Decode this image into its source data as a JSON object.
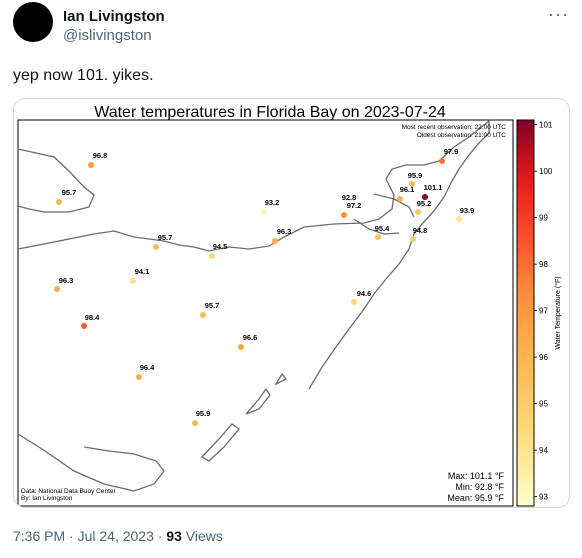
{
  "author": {
    "name": "Ian Livingston",
    "handle": "@islivingston"
  },
  "tweet": {
    "text": "yep now 101. yikes."
  },
  "more_icon": "more-horizontal-icon",
  "chart_data": {
    "type": "scatter",
    "title": "Water temperatures in Florida Bay on 2023-07-24",
    "recent_obs": "Most recent observation: 22:00 UTC",
    "oldest_obs": "Oldest observation: 21:00 UTC",
    "source_line1": "Data: National Data Buoy Center",
    "source_line2": "By: Ian Livingston",
    "stats": {
      "max": "Max: 101.1 °F",
      "min": "Min: 92.8 °F",
      "mean": "Mean: 95.9 °F"
    },
    "colorbar": {
      "label": "Water Temperature (°F)",
      "ticks": [
        "101",
        "100",
        "99",
        "98",
        "97",
        "96",
        "95",
        "94",
        "93"
      ],
      "range": [
        92.8,
        101.1
      ]
    },
    "points": [
      {
        "label": "96.8",
        "value": 96.8
      },
      {
        "label": "95.7",
        "value": 95.7
      },
      {
        "label": "93.2",
        "value": 93.2
      },
      {
        "label": "92.8",
        "value": 92.8
      },
      {
        "label": "97.2",
        "value": 97.2
      },
      {
        "label": "97.9",
        "value": 97.9
      },
      {
        "label": "95.9",
        "value": 95.9
      },
      {
        "label": "96.1",
        "value": 96.1
      },
      {
        "label": "101.1",
        "value": 101.1
      },
      {
        "label": "95.2",
        "value": 95.2
      },
      {
        "label": "93.9",
        "value": 93.9
      },
      {
        "label": "95.4",
        "value": 95.4
      },
      {
        "label": "94.8",
        "value": 94.8
      },
      {
        "label": "95.7",
        "value": 95.7
      },
      {
        "label": "94.5",
        "value": 94.5
      },
      {
        "label": "96.3",
        "value": 96.3
      },
      {
        "label": "94.1",
        "value": 94.1
      },
      {
        "label": "96.3",
        "value": 96.3
      },
      {
        "label": "95.7",
        "value": 95.7
      },
      {
        "label": "94.6",
        "value": 94.6
      },
      {
        "label": "98.4",
        "value": 98.4
      },
      {
        "label": "96.6",
        "value": 96.6
      },
      {
        "label": "96.4",
        "value": 96.4
      },
      {
        "label": "95.9",
        "value": 95.9
      }
    ]
  },
  "footer": {
    "time": "7:36 PM · Jul 24, 2023 · ",
    "views_count": "93",
    "views_label": " Views"
  }
}
